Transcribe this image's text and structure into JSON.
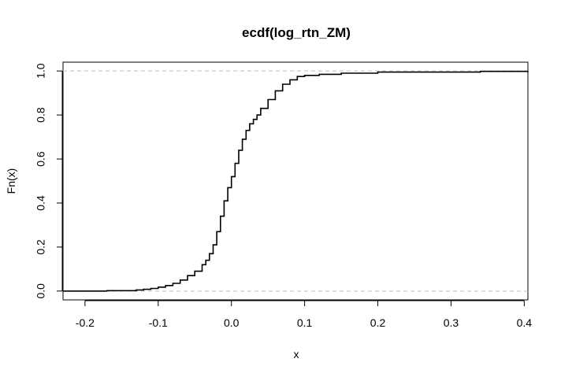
{
  "chart_data": {
    "type": "line",
    "title": "ecdf(log_rtn_ZM)",
    "xlabel": "x",
    "ylabel": "Fn(x)",
    "xlim": [
      -0.23,
      0.405
    ],
    "ylim": [
      -0.04,
      1.04
    ],
    "x_ticks": [
      "-0.2",
      "-0.1",
      "0.0",
      "0.1",
      "0.2",
      "0.3",
      "0.4"
    ],
    "y_ticks": [
      "0.0",
      "0.2",
      "0.4",
      "0.6",
      "0.8",
      "1.0"
    ],
    "reference_lines": [
      0,
      1
    ],
    "grid": false,
    "legend": "none",
    "colors": {
      "line": "#000000",
      "reference": "#bfbfbf",
      "axis": "#000000"
    },
    "series": [
      {
        "x": [
          -0.23,
          -0.17,
          -0.13,
          -0.12,
          -0.11,
          -0.1,
          -0.09,
          -0.08,
          -0.07,
          -0.06,
          -0.05,
          -0.04,
          -0.035,
          -0.03,
          -0.025,
          -0.02,
          -0.015,
          -0.01,
          -0.005,
          0.0,
          0.005,
          0.01,
          0.015,
          0.02,
          0.025,
          0.03,
          0.035,
          0.04,
          0.05,
          0.06,
          0.07,
          0.08,
          0.09,
          0.1,
          0.12,
          0.15,
          0.2,
          0.34,
          0.405
        ],
        "y": [
          0.0,
          0.002,
          0.005,
          0.008,
          0.012,
          0.018,
          0.025,
          0.035,
          0.05,
          0.07,
          0.09,
          0.12,
          0.14,
          0.17,
          0.21,
          0.27,
          0.34,
          0.41,
          0.47,
          0.52,
          0.58,
          0.64,
          0.69,
          0.73,
          0.76,
          0.78,
          0.8,
          0.83,
          0.87,
          0.91,
          0.94,
          0.96,
          0.975,
          0.98,
          0.985,
          0.99,
          0.995,
          0.998,
          1.0
        ]
      }
    ]
  }
}
